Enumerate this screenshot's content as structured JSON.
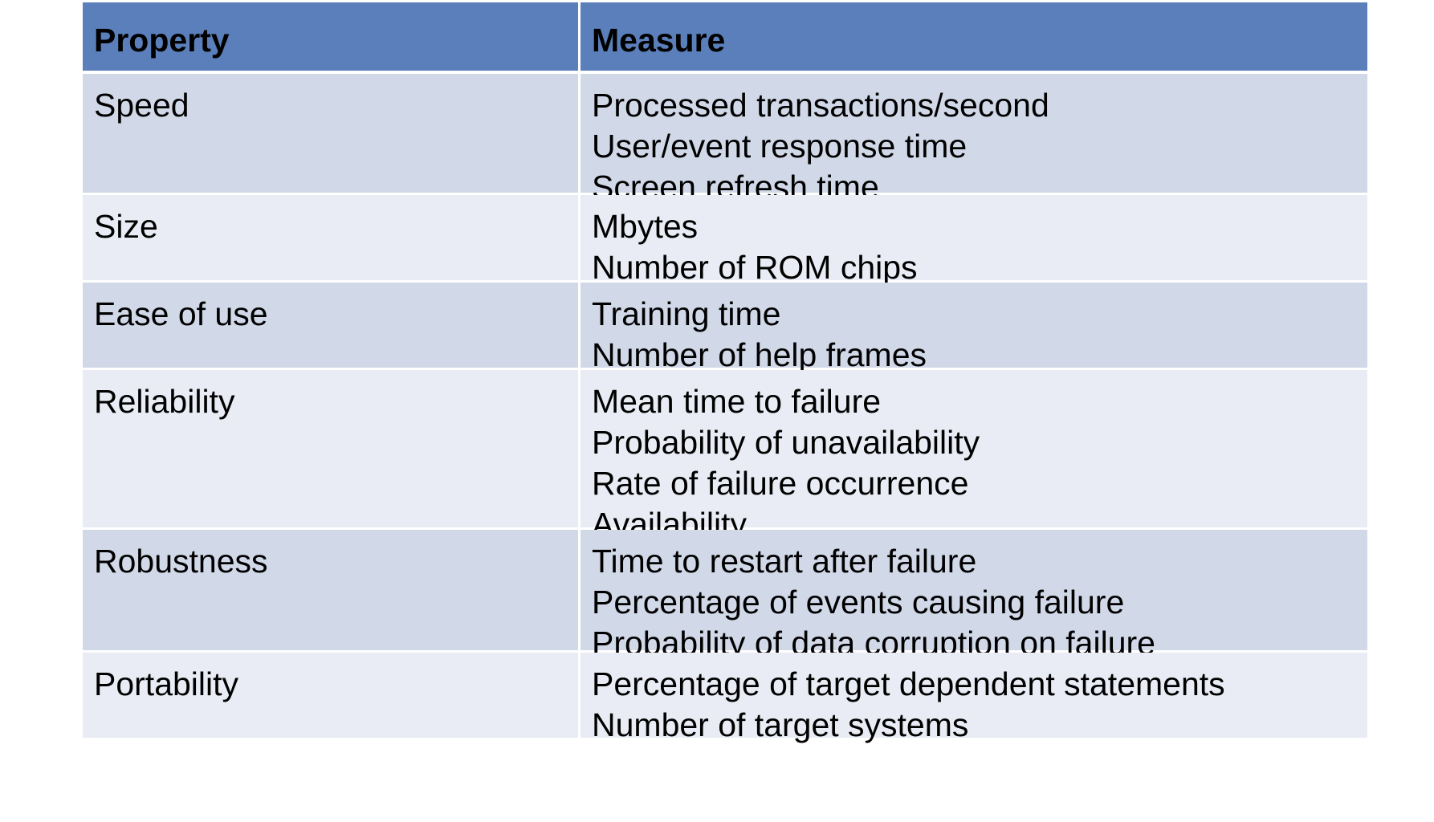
{
  "table": {
    "headers": {
      "property": "Property",
      "measure": "Measure"
    },
    "rows": [
      {
        "property": "Speed",
        "measures": [
          "Processed transactions/second",
          "User/event response time",
          "Screen refresh time"
        ]
      },
      {
        "property": "Size",
        "measures": [
          "Mbytes",
          "Number of ROM chips"
        ]
      },
      {
        "property": "Ease of use",
        "measures": [
          "Training time",
          "Number of help frames"
        ]
      },
      {
        "property": "Reliability",
        "measures": [
          "Mean time to failure",
          "Probability of unavailability",
          "Rate of failure occurrence",
          "Availability"
        ]
      },
      {
        "property": "Robustness",
        "measures": [
          "Time to restart after failure",
          "Percentage of events causing failure",
          "Probability of data corruption on failure"
        ]
      },
      {
        "property": "Portability",
        "measures": [
          "Percentage of target dependent statements",
          "Number of target systems"
        ]
      }
    ]
  },
  "colors": {
    "header_bg": "#5a7fba",
    "row_dark": "#d1d8e8",
    "row_light": "#e9ecf4"
  }
}
